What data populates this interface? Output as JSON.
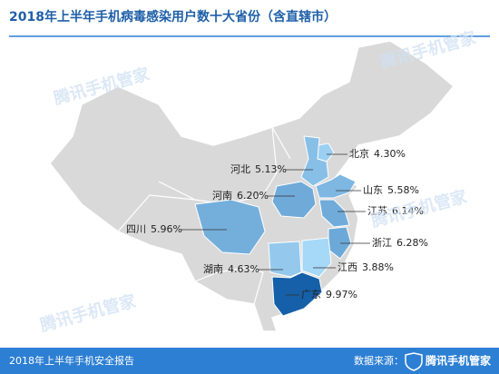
{
  "header": {
    "title": "2018年上半年手机病毒感染用户数十大省份（含直辖市）"
  },
  "regions": [
    {
      "name": "北京",
      "value": 4.3,
      "value_label": "4.30%"
    },
    {
      "name": "河北",
      "value": 5.13,
      "value_label": "5.13%"
    },
    {
      "name": "山东",
      "value": 5.58,
      "value_label": "5.58%"
    },
    {
      "name": "河南",
      "value": 6.2,
      "value_label": "6.20%"
    },
    {
      "name": "江苏",
      "value": 6.14,
      "value_label": "6.14%"
    },
    {
      "name": "四川",
      "value": 5.96,
      "value_label": "5.96%"
    },
    {
      "name": "浙江",
      "value": 6.28,
      "value_label": "6.28%"
    },
    {
      "name": "江西",
      "value": 3.88,
      "value_label": "3.88%"
    },
    {
      "name": "湖南",
      "value": 4.63,
      "value_label": "4.63%"
    },
    {
      "name": "广东",
      "value": 9.97,
      "value_label": "9.97%"
    }
  ],
  "watermark": "腾讯手机管家",
  "footer": {
    "report": "2018年上半年手机安全报告",
    "source_label": "数据来源：",
    "source": "腾讯手机管家"
  }
}
